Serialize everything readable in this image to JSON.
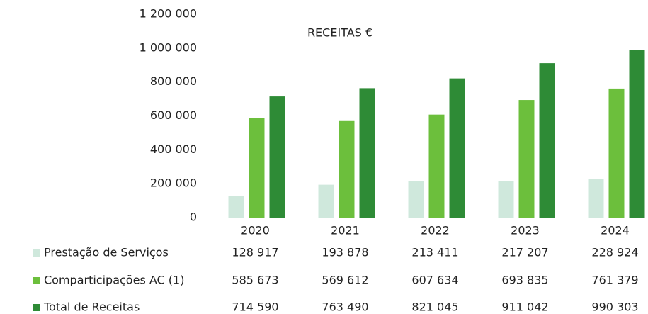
{
  "chart_data": {
    "type": "bar",
    "title": "RECEITAS €",
    "categories": [
      "2020",
      "2021",
      "2022",
      "2023",
      "2024"
    ],
    "series": [
      {
        "name": "Prestação de Serviços",
        "color": "#cfe8dc",
        "values": [
          128917,
          193878,
          213411,
          217207,
          228924
        ],
        "value_labels": [
          "128 917",
          "193 878",
          "213 411",
          "217 207",
          "228 924"
        ]
      },
      {
        "name": "Comparticipações AC (1)",
        "color": "#6cbf3c",
        "values": [
          585673,
          569612,
          607634,
          693835,
          761379
        ],
        "value_labels": [
          "585 673",
          "569 612",
          "607 634",
          "693 835",
          "761 379"
        ]
      },
      {
        "name": "Total de Receitas",
        "color": "#2e8b36",
        "values": [
          714590,
          763490,
          821045,
          911042,
          990303
        ],
        "value_labels": [
          "714 590",
          "763 490",
          "821 045",
          "911 042",
          "990 303"
        ]
      }
    ],
    "ylim": [
      0,
      1200000
    ],
    "yticks": [
      0,
      {
        "value": 200000,
        "label": "200 000"
      },
      {
        "value": 400000,
        "label": "400 000"
      },
      {
        "value": 600000,
        "label": "600 000"
      },
      {
        "value": 800000,
        "label": "800 000"
      },
      {
        "value": 1000000,
        "label": "1 000 000"
      },
      {
        "value": 1200000,
        "label": "1 200 000"
      }
    ],
    "grid": false
  }
}
